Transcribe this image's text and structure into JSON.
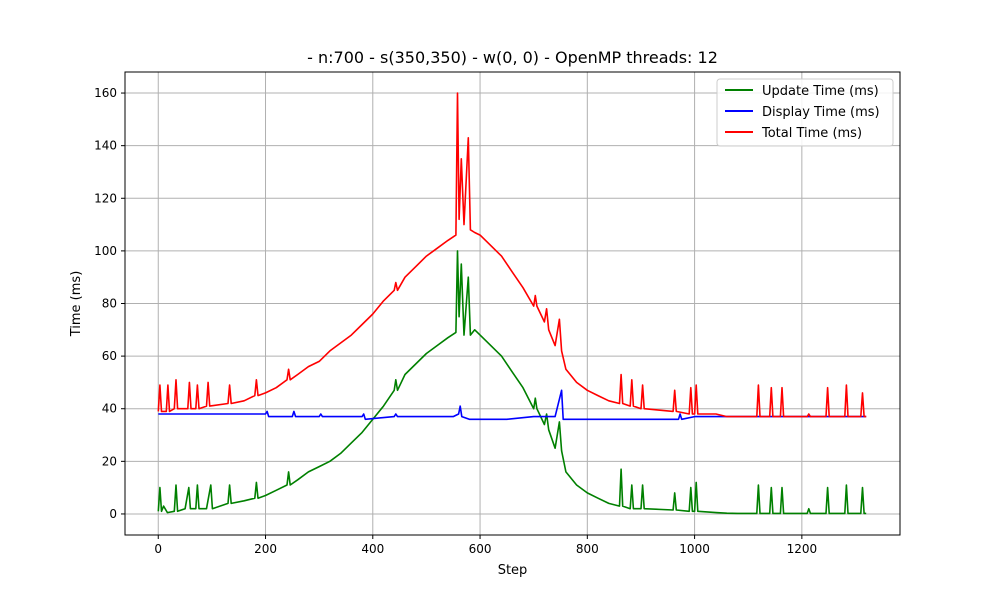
{
  "chart_data": {
    "type": "line",
    "title": "- n:700 - s(350,350) - w(0, 0) - OpenMP threads: 12",
    "xlabel": "Step",
    "ylabel": "Time (ms)",
    "xlim": [
      -62,
      1383
    ],
    "ylim": [
      -8,
      168
    ],
    "xticks": [
      0,
      200,
      400,
      600,
      800,
      1000,
      1200
    ],
    "yticks": [
      0,
      20,
      40,
      60,
      80,
      100,
      120,
      140,
      160
    ],
    "grid": true,
    "legend_position": "top-right",
    "series": [
      {
        "name": "Update Time (ms)",
        "color": "#008000",
        "points": [
          [
            0,
            1
          ],
          [
            3,
            10
          ],
          [
            6,
            1
          ],
          [
            10,
            3
          ],
          [
            17,
            0.5
          ],
          [
            30,
            1
          ],
          [
            33,
            11
          ],
          [
            36,
            1
          ],
          [
            50,
            2
          ],
          [
            57,
            10
          ],
          [
            60,
            2
          ],
          [
            70,
            2
          ],
          [
            73,
            11
          ],
          [
            76,
            2
          ],
          [
            90,
            2
          ],
          [
            98,
            11
          ],
          [
            101,
            2
          ],
          [
            130,
            4
          ],
          [
            133,
            11
          ],
          [
            136,
            4
          ],
          [
            160,
            5
          ],
          [
            180,
            6
          ],
          [
            183,
            12
          ],
          [
            186,
            6
          ],
          [
            200,
            7
          ],
          [
            220,
            9
          ],
          [
            240,
            11
          ],
          [
            243,
            16
          ],
          [
            246,
            11
          ],
          [
            260,
            13
          ],
          [
            280,
            16
          ],
          [
            300,
            18
          ],
          [
            320,
            20
          ],
          [
            340,
            23
          ],
          [
            360,
            27
          ],
          [
            380,
            31
          ],
          [
            400,
            36
          ],
          [
            420,
            41
          ],
          [
            440,
            47
          ],
          [
            443,
            51
          ],
          [
            446,
            47
          ],
          [
            460,
            53
          ],
          [
            480,
            57
          ],
          [
            500,
            61
          ],
          [
            520,
            64
          ],
          [
            540,
            67
          ],
          [
            555,
            69
          ],
          [
            558,
            100
          ],
          [
            561,
            75
          ],
          [
            565,
            95
          ],
          [
            570,
            68
          ],
          [
            578,
            90
          ],
          [
            582,
            68
          ],
          [
            590,
            70
          ],
          [
            600,
            68
          ],
          [
            620,
            64
          ],
          [
            640,
            60
          ],
          [
            660,
            54
          ],
          [
            680,
            48
          ],
          [
            700,
            40
          ],
          [
            703,
            44
          ],
          [
            706,
            40
          ],
          [
            720,
            34
          ],
          [
            724,
            38
          ],
          [
            728,
            32
          ],
          [
            740,
            25
          ],
          [
            748,
            35
          ],
          [
            752,
            24
          ],
          [
            760,
            16
          ],
          [
            780,
            11
          ],
          [
            800,
            8
          ],
          [
            820,
            6
          ],
          [
            840,
            4
          ],
          [
            860,
            3
          ],
          [
            863,
            17
          ],
          [
            866,
            3
          ],
          [
            880,
            2
          ],
          [
            883,
            11
          ],
          [
            886,
            2
          ],
          [
            900,
            2
          ],
          [
            903,
            11
          ],
          [
            906,
            2
          ],
          [
            960,
            1.5
          ],
          [
            963,
            8
          ],
          [
            966,
            1.5
          ],
          [
            990,
            1
          ],
          [
            993,
            10
          ],
          [
            996,
            1
          ],
          [
            1000,
            1
          ],
          [
            1003,
            12
          ],
          [
            1006,
            1
          ],
          [
            1040,
            0.5
          ],
          [
            1060,
            0.3
          ],
          [
            1080,
            0.2
          ],
          [
            1100,
            0.2
          ],
          [
            1116,
            0.2
          ],
          [
            1119,
            11
          ],
          [
            1122,
            0.2
          ],
          [
            1140,
            0.2
          ],
          [
            1143,
            10
          ],
          [
            1146,
            0.2
          ],
          [
            1160,
            0.2
          ],
          [
            1163,
            10
          ],
          [
            1166,
            0.2
          ],
          [
            1210,
            0.2
          ],
          [
            1213,
            2
          ],
          [
            1216,
            0.2
          ],
          [
            1245,
            0.2
          ],
          [
            1248,
            10
          ],
          [
            1251,
            0.2
          ],
          [
            1280,
            0.2
          ],
          [
            1283,
            11
          ],
          [
            1286,
            0.2
          ],
          [
            1310,
            0.2
          ],
          [
            1313,
            10
          ],
          [
            1316,
            0.2
          ],
          [
            1320,
            0.2
          ]
        ]
      },
      {
        "name": "Display Time (ms)",
        "color": "#0000ff",
        "points": [
          [
            0,
            38
          ],
          [
            50,
            38
          ],
          [
            100,
            38
          ],
          [
            150,
            38
          ],
          [
            200,
            38
          ],
          [
            203,
            39
          ],
          [
            206,
            37
          ],
          [
            250,
            37
          ],
          [
            253,
            39
          ],
          [
            256,
            37
          ],
          [
            300,
            37
          ],
          [
            303,
            38
          ],
          [
            306,
            37
          ],
          [
            350,
            37
          ],
          [
            380,
            37
          ],
          [
            383,
            38
          ],
          [
            386,
            36
          ],
          [
            440,
            37
          ],
          [
            443,
            38
          ],
          [
            446,
            37
          ],
          [
            500,
            37
          ],
          [
            550,
            37
          ],
          [
            560,
            38
          ],
          [
            563,
            41
          ],
          [
            566,
            37
          ],
          [
            580,
            36
          ],
          [
            600,
            36
          ],
          [
            650,
            36
          ],
          [
            700,
            37
          ],
          [
            740,
            37
          ],
          [
            752,
            47
          ],
          [
            755,
            36
          ],
          [
            780,
            36
          ],
          [
            800,
            36
          ],
          [
            850,
            36
          ],
          [
            900,
            36
          ],
          [
            950,
            36
          ],
          [
            970,
            36
          ],
          [
            973,
            38
          ],
          [
            976,
            36
          ],
          [
            1000,
            37
          ],
          [
            1050,
            37
          ],
          [
            1100,
            37
          ],
          [
            1200,
            37
          ],
          [
            1320,
            37
          ]
        ]
      },
      {
        "name": "Total Time (ms)",
        "color": "#ff0000",
        "points": [
          [
            0,
            39
          ],
          [
            3,
            49
          ],
          [
            6,
            39
          ],
          [
            15,
            39
          ],
          [
            18,
            49
          ],
          [
            21,
            39
          ],
          [
            30,
            40
          ],
          [
            33,
            51
          ],
          [
            36,
            40
          ],
          [
            55,
            40
          ],
          [
            58,
            50
          ],
          [
            61,
            40
          ],
          [
            70,
            40
          ],
          [
            73,
            49
          ],
          [
            76,
            40
          ],
          [
            90,
            41
          ],
          [
            93,
            50
          ],
          [
            96,
            41
          ],
          [
            130,
            42
          ],
          [
            133,
            49
          ],
          [
            136,
            42
          ],
          [
            160,
            43
          ],
          [
            180,
            45
          ],
          [
            183,
            51
          ],
          [
            186,
            45
          ],
          [
            200,
            46
          ],
          [
            220,
            48
          ],
          [
            240,
            51
          ],
          [
            243,
            55
          ],
          [
            246,
            51
          ],
          [
            260,
            53
          ],
          [
            280,
            56
          ],
          [
            300,
            58
          ],
          [
            320,
            62
          ],
          [
            340,
            65
          ],
          [
            360,
            68
          ],
          [
            380,
            72
          ],
          [
            400,
            76
          ],
          [
            420,
            81
          ],
          [
            440,
            85
          ],
          [
            443,
            88
          ],
          [
            446,
            85
          ],
          [
            460,
            90
          ],
          [
            480,
            94
          ],
          [
            500,
            98
          ],
          [
            520,
            101
          ],
          [
            540,
            104
          ],
          [
            555,
            106
          ],
          [
            558,
            160
          ],
          [
            561,
            112
          ],
          [
            565,
            135
          ],
          [
            570,
            110
          ],
          [
            578,
            143
          ],
          [
            582,
            108
          ],
          [
            590,
            107
          ],
          [
            600,
            106
          ],
          [
            620,
            102
          ],
          [
            640,
            98
          ],
          [
            660,
            92
          ],
          [
            680,
            86
          ],
          [
            700,
            79
          ],
          [
            703,
            83
          ],
          [
            706,
            79
          ],
          [
            720,
            73
          ],
          [
            724,
            78
          ],
          [
            728,
            70
          ],
          [
            740,
            64
          ],
          [
            748,
            74
          ],
          [
            752,
            62
          ],
          [
            760,
            55
          ],
          [
            780,
            50
          ],
          [
            800,
            47
          ],
          [
            820,
            45
          ],
          [
            840,
            43
          ],
          [
            860,
            42
          ],
          [
            863,
            53
          ],
          [
            866,
            42
          ],
          [
            880,
            41
          ],
          [
            883,
            51
          ],
          [
            886,
            41
          ],
          [
            900,
            40
          ],
          [
            903,
            49
          ],
          [
            906,
            40
          ],
          [
            960,
            39
          ],
          [
            963,
            47
          ],
          [
            966,
            39
          ],
          [
            990,
            38
          ],
          [
            993,
            48
          ],
          [
            996,
            38
          ],
          [
            1000,
            38
          ],
          [
            1003,
            49
          ],
          [
            1006,
            38
          ],
          [
            1040,
            38
          ],
          [
            1060,
            37
          ],
          [
            1080,
            37
          ],
          [
            1100,
            37
          ],
          [
            1116,
            37
          ],
          [
            1119,
            49
          ],
          [
            1122,
            37
          ],
          [
            1140,
            37
          ],
          [
            1143,
            48
          ],
          [
            1146,
            37
          ],
          [
            1160,
            37
          ],
          [
            1163,
            48
          ],
          [
            1166,
            37
          ],
          [
            1210,
            37
          ],
          [
            1213,
            38
          ],
          [
            1216,
            37
          ],
          [
            1245,
            37
          ],
          [
            1248,
            48
          ],
          [
            1251,
            37
          ],
          [
            1280,
            37
          ],
          [
            1283,
            49
          ],
          [
            1286,
            37
          ],
          [
            1310,
            37
          ],
          [
            1313,
            46
          ],
          [
            1316,
            37
          ],
          [
            1320,
            37
          ]
        ]
      }
    ]
  }
}
